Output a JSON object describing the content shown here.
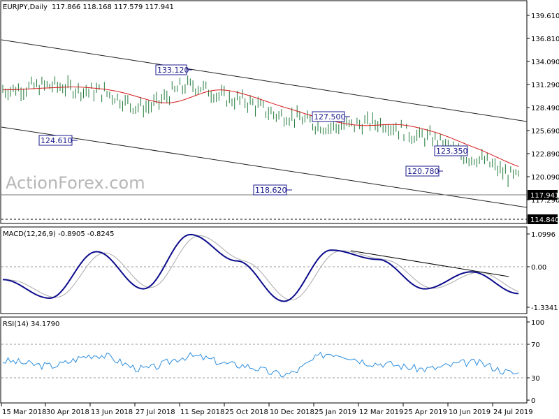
{
  "price_panel": {
    "symbol": "EURJPY,Daily",
    "ohlc": "117.866 118.168 117.579 117.941",
    "y_ticks": [
      "139.610",
      "136.810",
      "134.090",
      "131.290",
      "128.490",
      "125.690",
      "122.890",
      "120.090",
      "117.290",
      "114.840"
    ],
    "last_price": "117.941",
    "support_level": "114.840",
    "watermark": "ActionForex.com",
    "annotations": [
      "133.120",
      "124.610",
      "127.500",
      "118.620",
      "123.350",
      "120.780"
    ]
  },
  "macd_panel": {
    "label": "MACD(12,26,9) -0.8905 -0.8245",
    "y_ticks": [
      "1.0996",
      "0.00",
      "-1.3341"
    ]
  },
  "rsi_panel": {
    "label": "RSI(14) 34.1790",
    "y_ticks": [
      "100",
      "70",
      "30",
      "0"
    ]
  },
  "x_ticks": [
    "15 Mar 2018",
    "30 Apr 2018",
    "13 Jun 2018",
    "27 Jul 2018",
    "11 Sep 2018",
    "25 Oct 2018",
    "10 Dec 2018",
    "25 Jan 2019",
    "12 Mar 2019",
    "25 Apr 2019",
    "10 Jun 2019",
    "24 Jul 2019"
  ],
  "colors": {
    "price_bars": "#1f7a3a",
    "moving_average": "#d61a1a",
    "macd": "#0b0b8c",
    "signal": "#aaaaaa",
    "rsi": "#2e8fe0",
    "channel": "#222222",
    "annotation_text": "#1a1a8c"
  },
  "chart_data": {
    "type": "line",
    "title": "EURJPY,Daily",
    "x": [
      "15 Mar 2018",
      "30 Apr 2018",
      "13 Jun 2018",
      "27 Jul 2018",
      "11 Sep 2018",
      "25 Oct 2018",
      "10 Dec 2018",
      "25 Jan 2019",
      "12 Mar 2019",
      "25 Apr 2019",
      "10 Jun 2019",
      "24 Jul 2019"
    ],
    "series": [
      {
        "name": "EURJPY close (approx.)",
        "values": [
          130.5,
          131.0,
          130.3,
          128.3,
          131.0,
          129.2,
          127.2,
          125.8,
          126.3,
          124.5,
          121.9,
          119.4
        ]
      },
      {
        "name": "MACD(12,26,9)",
        "values": [
          -0.45,
          -1.05,
          0.45,
          -0.75,
          1.0,
          0.15,
          -1.15,
          0.5,
          0.2,
          -0.75,
          -0.2,
          -0.9
        ]
      },
      {
        "name": "RSI(14)",
        "values": [
          50,
          44,
          58,
          40,
          56,
          45,
          33,
          60,
          47,
          40,
          48,
          34
        ]
      }
    ],
    "ohlc_last": {
      "open": 117.866,
      "high": 118.168,
      "low": 117.579,
      "close": 117.941
    },
    "price_ylim": [
      114.0,
      141.0
    ],
    "macd_ylim": [
      -1.5,
      1.2
    ],
    "rsi_ylim": [
      0,
      100
    ],
    "annotations": [
      {
        "x": "11 Sep 2018",
        "label": "133.120"
      },
      {
        "x": "30 Apr 2018",
        "label": "124.610"
      },
      {
        "x": "25 Jan 2019",
        "label": "127.500"
      },
      {
        "x": "10 Dec 2018",
        "label": "118.620"
      },
      {
        "x": "10 Jun 2019",
        "label": "123.350"
      },
      {
        "x": "10 Jun 2019",
        "label": "120.780"
      }
    ],
    "horizontal_levels": [
      114.84,
      117.941
    ],
    "grid": false,
    "legend": "none"
  }
}
